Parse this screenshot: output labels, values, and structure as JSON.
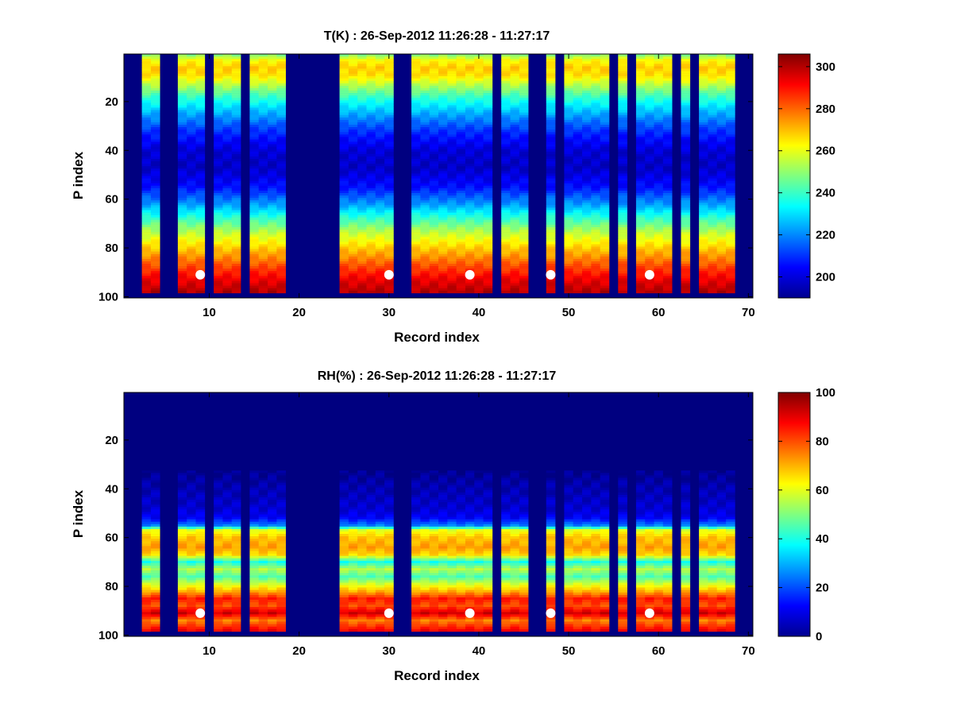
{
  "chart_data": [
    {
      "type": "heatmap",
      "title": "T(K) : 26-Sep-2012 11:26:28 - 11:27:17",
      "xlabel": "Record index",
      "ylabel": "P index",
      "xlim": [
        0.5,
        70.5
      ],
      "ylim": [
        0.5,
        100.5
      ],
      "y_reversed": true,
      "xticks": [
        10,
        20,
        30,
        40,
        50,
        60,
        70
      ],
      "yticks": [
        20,
        40,
        60,
        80,
        100
      ],
      "colorbar": {
        "min": 190,
        "max": 306,
        "ticks": [
          200,
          220,
          240,
          260,
          280,
          300
        ]
      },
      "background_value": 190,
      "data_columns": [
        3,
        4,
        7,
        8,
        9,
        11,
        12,
        13,
        15,
        16,
        17,
        18,
        25,
        26,
        27,
        28,
        29,
        30,
        33,
        34,
        35,
        36,
        37,
        38,
        39,
        40,
        41,
        43,
        44,
        45,
        48,
        50,
        51,
        52,
        53,
        54,
        56,
        58,
        59,
        60,
        61,
        63,
        65,
        66,
        67,
        68
      ],
      "p_range": [
        1,
        98
      ],
      "profile": {
        "p": [
          1,
          3,
          6,
          9,
          12,
          18,
          25,
          32,
          40,
          47,
          55,
          62,
          68,
          74,
          80,
          86,
          92,
          98
        ],
        "value": [
          250,
          262,
          268,
          266,
          258,
          240,
          224,
          210,
          200,
          198,
          206,
          222,
          240,
          256,
          268,
          280,
          292,
          300
        ]
      },
      "markers": {
        "p": 91,
        "records": [
          9,
          30,
          39,
          48,
          59
        ],
        "color": "#ffffff"
      }
    },
    {
      "type": "heatmap",
      "title": "RH(%) : 26-Sep-2012 11:26:28 - 11:27:17",
      "xlabel": "Record index",
      "ylabel": "P index",
      "xlim": [
        0.5,
        70.5
      ],
      "ylim": [
        0.5,
        100.5
      ],
      "y_reversed": true,
      "xticks": [
        10,
        20,
        30,
        40,
        50,
        60,
        70
      ],
      "yticks": [
        20,
        40,
        60,
        80,
        100
      ],
      "colorbar": {
        "min": 0,
        "max": 100,
        "ticks": [
          0,
          20,
          40,
          60,
          80,
          100
        ]
      },
      "background_value": 0,
      "data_columns": [
        3,
        4,
        7,
        8,
        9,
        11,
        12,
        13,
        15,
        16,
        17,
        18,
        25,
        26,
        27,
        28,
        29,
        30,
        33,
        34,
        35,
        36,
        37,
        38,
        39,
        40,
        41,
        43,
        44,
        45,
        48,
        50,
        51,
        52,
        53,
        54,
        56,
        58,
        59,
        60,
        61,
        63,
        65,
        66,
        67,
        68
      ],
      "p_range": [
        33,
        98
      ],
      "profile": {
        "p": [
          33,
          40,
          48,
          52,
          55,
          57,
          60,
          64,
          67,
          70,
          73,
          76,
          79,
          82,
          85,
          88,
          91,
          94,
          98
        ],
        "value": [
          2,
          5,
          8,
          12,
          25,
          60,
          68,
          72,
          66,
          40,
          55,
          45,
          58,
          70,
          85,
          80,
          92,
          75,
          88
        ]
      },
      "markers": {
        "p": 91,
        "records": [
          9,
          30,
          39,
          48,
          59
        ],
        "color": "#ffffff"
      }
    }
  ]
}
